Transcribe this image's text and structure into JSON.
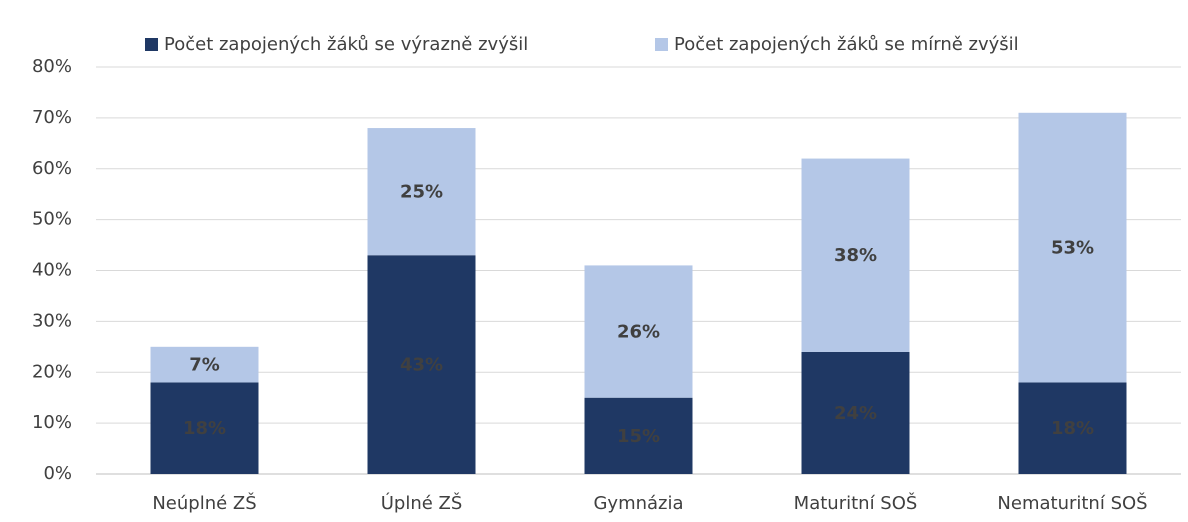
{
  "chart_data": {
    "type": "stacked_bar",
    "categories": [
      "Neúplné ZŠ",
      "Úplné ZŠ",
      "Gymnázia",
      "Maturitní SOŠ",
      "Nematuritní SOŠ"
    ],
    "series": [
      {
        "name": "Počet zapojených žáků se výrazně zvýšil",
        "color": "#1f3864",
        "label_color": "#ffffff",
        "values": [
          18,
          43,
          15,
          24,
          18
        ],
        "value_labels": [
          "18%",
          "43%",
          "15%",
          "24%",
          "18%"
        ]
      },
      {
        "name": "Počet zapojených žáků se mírně zvýšil",
        "color": "#b4c7e7",
        "label_color": "#262626",
        "values": [
          7,
          25,
          26,
          38,
          53
        ],
        "value_labels": [
          "7%",
          "25%",
          "26%",
          "38%",
          "53%"
        ]
      }
    ],
    "ylim": [
      0,
      80
    ],
    "yticks": [
      {
        "value": 0,
        "label": "0%"
      },
      {
        "value": 10,
        "label": "10%"
      },
      {
        "value": 20,
        "label": "20%"
      },
      {
        "value": 30,
        "label": "30%"
      },
      {
        "value": 40,
        "label": "40%"
      },
      {
        "value": 50,
        "label": "50%"
      },
      {
        "value": 60,
        "label": "60%"
      },
      {
        "value": 70,
        "label": "70%"
      },
      {
        "value": 80,
        "label": "80%"
      }
    ],
    "grid": true,
    "legend": "top"
  }
}
